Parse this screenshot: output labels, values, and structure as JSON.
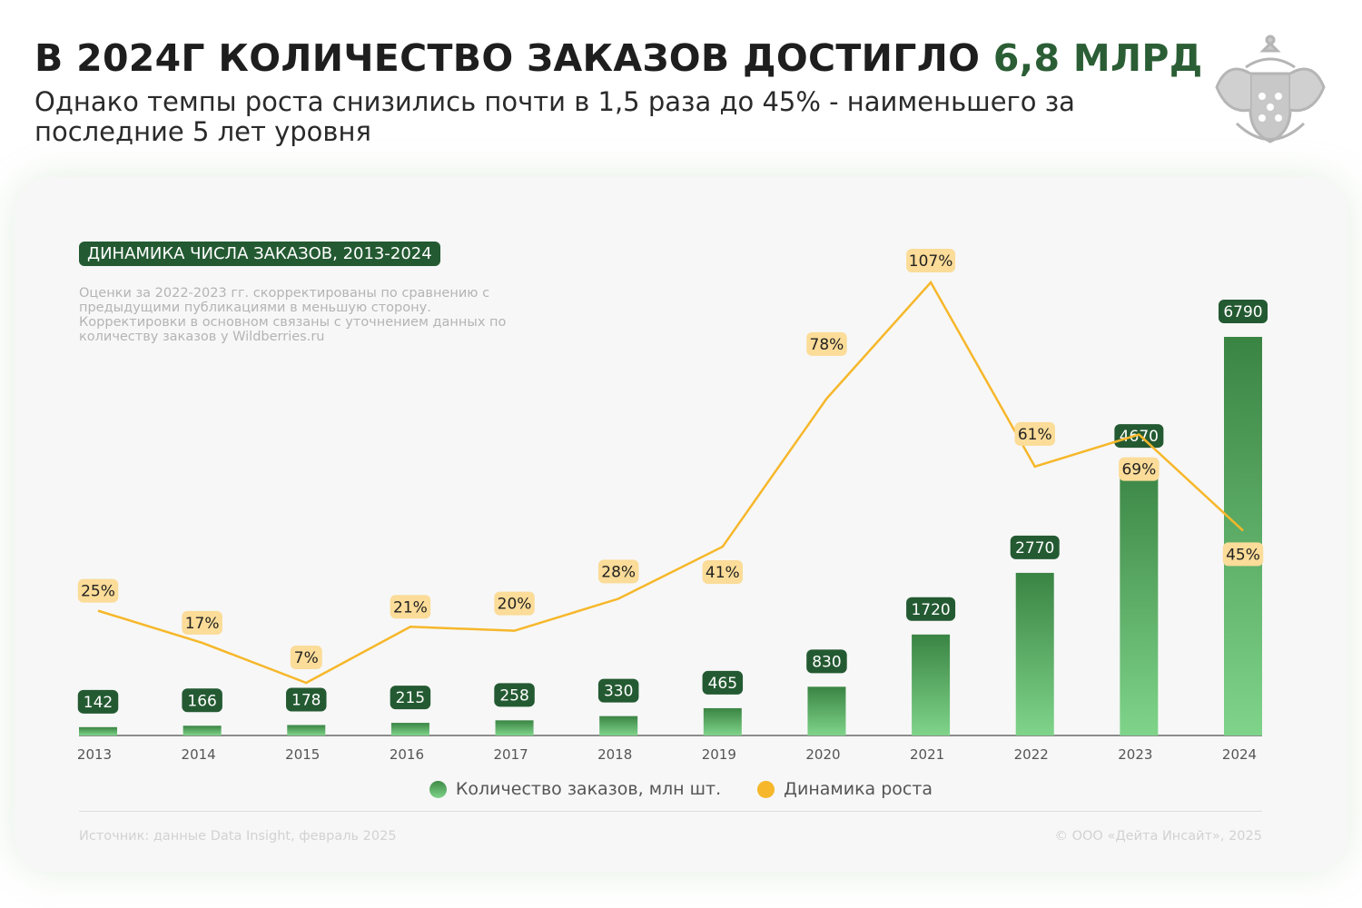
{
  "header": {
    "title_main": "В 2024Г КОЛИЧЕСТВО ЗАКАЗОВ ДОСТИГЛО ",
    "title_accent": "6,8 МЛРД",
    "subtitle": "Однако темпы роста снизились почти в 1,5 раза до 45% - наименьшего за последние 5 лет уровня"
  },
  "chart_data": {
    "type": "bar",
    "title": "ДИНАМИКА ЧИСЛА ЗАКАЗОВ, 2013-2024",
    "note": "Оценки за 2022-2023 гг. скорректированы по сравнению с предыдущими публикациями в меньшую сторону. Корректировки в основном связаны с уточнением данных по количеству заказов у Wildberries.ru",
    "categories": [
      "2013",
      "2014",
      "2015",
      "2016",
      "2017",
      "2018",
      "2019",
      "2020",
      "2021",
      "2022",
      "2023",
      "2024"
    ],
    "series": [
      {
        "name": "Количество заказов, млн шт.",
        "type": "bar",
        "color": "#3e8a47",
        "values": [
          142,
          166,
          178,
          215,
          258,
          330,
          465,
          830,
          1720,
          2770,
          4670,
          6790
        ]
      },
      {
        "name": "Динамика роста",
        "type": "line",
        "color": "#f6b72a",
        "values": [
          25,
          17,
          7,
          21,
          20,
          28,
          41,
          78,
          107,
          61,
          69,
          45
        ],
        "labels": [
          "25%",
          "17%",
          "7%",
          "21%",
          "20%",
          "28%",
          "41%",
          "78%",
          "107%",
          "61%",
          "69%",
          "45%"
        ]
      }
    ],
    "grid": false,
    "legend": "bottom"
  },
  "footer": {
    "source": "Источник: данные Data Insight, февраль 2025",
    "copyright": "© ООО «Дейта Инсайт», 2025"
  }
}
